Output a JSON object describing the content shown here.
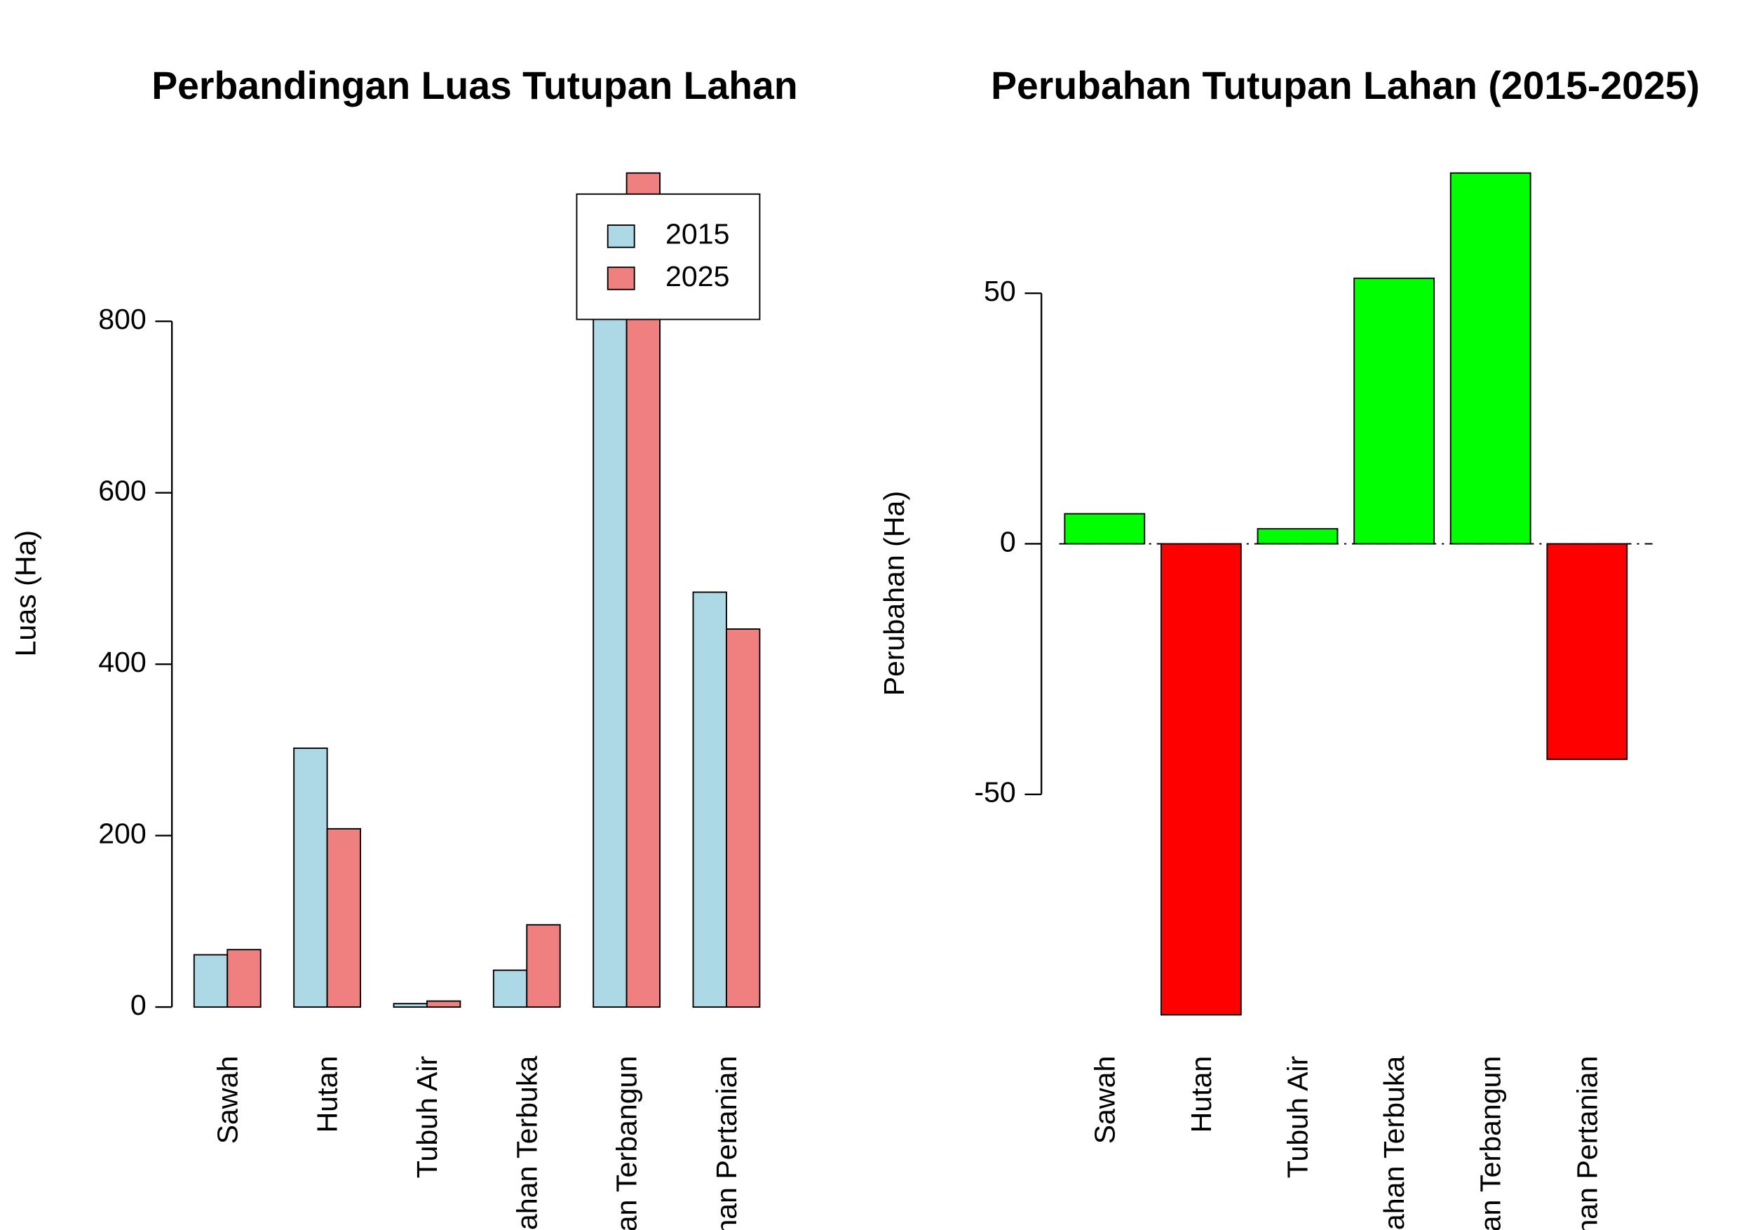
{
  "chart_data": [
    {
      "type": "grouped_bar",
      "title": "Perbandingan Luas Tutupan Lahan",
      "y_label": "Luas (Ha)",
      "categories": [
        "Sawah",
        "Hutan",
        "Tubuh Air",
        "Lahan Terbuka",
        "Lahan Terbangun",
        "Lahan Pertanian"
      ],
      "series": [
        {
          "name": "2015",
          "color": "#add8e6",
          "values": [
            61,
            302,
            4,
            43,
            899,
            484
          ]
        },
        {
          "name": "2025",
          "color": "#f08080",
          "values": [
            67,
            208,
            7,
            96,
            973,
            441
          ]
        }
      ],
      "ylim": [
        0,
        973
      ],
      "yticks": [
        0,
        200,
        400,
        600,
        800
      ],
      "legend": "topright"
    },
    {
      "type": "bar",
      "title": "Perubahan Tutupan Lahan (2015-2025)",
      "y_label": "Perubahan (Ha)",
      "categories": [
        "Sawah",
        "Hutan",
        "Tubuh Air",
        "Lahan Terbuka",
        "Lahan Terbangun",
        "Lahan Pertanian"
      ],
      "values": [
        6,
        -94,
        3,
        53,
        74,
        -43
      ],
      "colors": [
        "#00ff00",
        "#ff0000",
        "#00ff00",
        "#00ff00",
        "#00ff00",
        "#ff0000"
      ],
      "ylim": [
        -94,
        74
      ],
      "yticks": [
        -50,
        0,
        50
      ],
      "reference_line": 0
    }
  ]
}
